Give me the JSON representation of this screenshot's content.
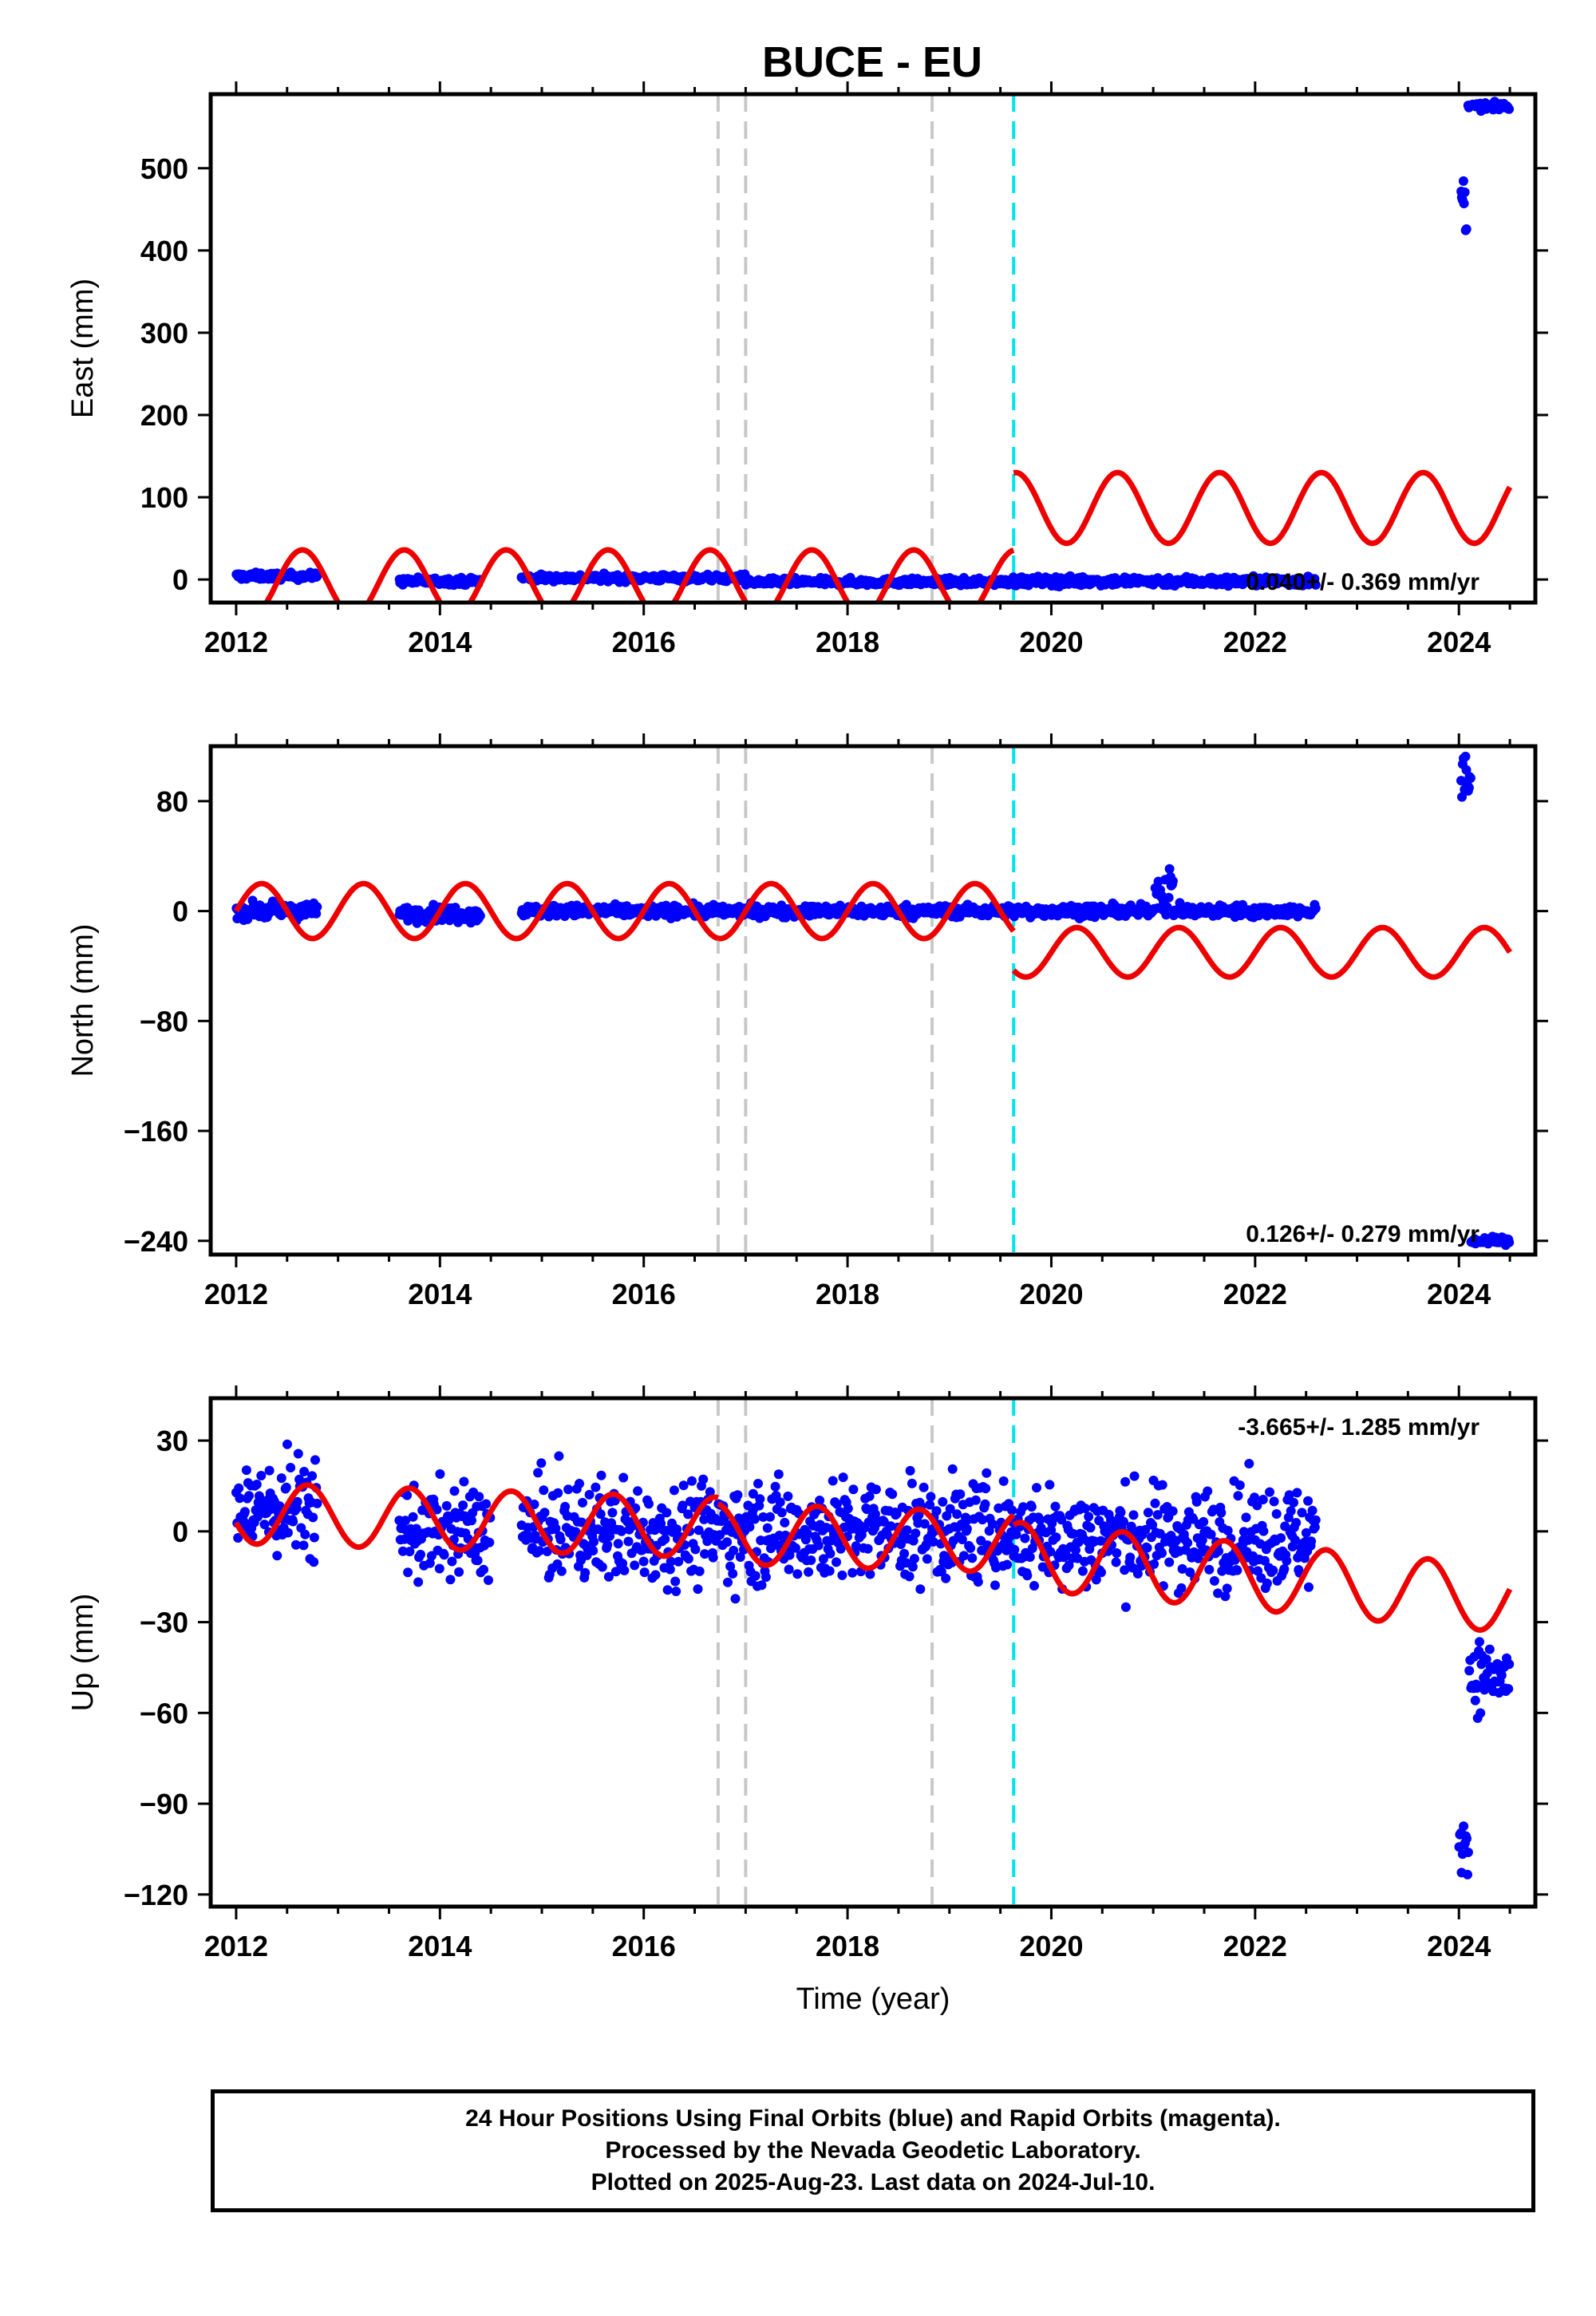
{
  "title": "BUCE - EU",
  "footer": {
    "line1": "24 Hour Positions Using Final Orbits (blue) and Rapid Orbits (magenta).",
    "line2": "Processed by the Nevada Geodetic Laboratory.",
    "line3": "Plotted on 2025-Aug-23. Last data on 2024-Jul-10."
  },
  "colors": {
    "data": "#0000ff",
    "model": "#ee0000",
    "step_marker": "#c8c8c8",
    "equipment_marker": "#00e5ee"
  },
  "chart_data": [
    {
      "type": "scatter",
      "panel": "East",
      "ylabel": "East (mm)",
      "xlabel": "",
      "xlim": [
        2011.75,
        2024.75
      ],
      "ylim": [
        -28,
        590
      ],
      "xticks": [
        2012,
        2014,
        2016,
        2018,
        2020,
        2022,
        2024
      ],
      "yticks": [
        0,
        100,
        200,
        300,
        400,
        500
      ],
      "rate_text": "0.040+/- 0.369 mm/yr",
      "markers": [
        {
          "x": 2016.73,
          "kind": "gray"
        },
        {
          "x": 2017.0,
          "kind": "gray"
        },
        {
          "x": 2018.83,
          "kind": "gray"
        },
        {
          "x": 2019.63,
          "kind": "cyan"
        }
      ],
      "model": {
        "segments": [
          {
            "x0": 2012.0,
            "x1": 2016.73,
            "offset": -4,
            "trend": 0,
            "amp": 40,
            "phase": 0.4
          },
          {
            "x0": 2016.73,
            "x1": 2019.63,
            "offset": -4,
            "trend": 0,
            "amp": 40,
            "phase": 0.4
          },
          {
            "x0": 2019.63,
            "x1": 2024.5,
            "offset": 87,
            "trend": 0,
            "amp": 43,
            "phase": 0.4
          }
        ]
      },
      "data": {
        "clusters": [
          {
            "x0": 2012.0,
            "x1": 2012.8,
            "y": 4,
            "noise": 3
          },
          {
            "x0": 2013.6,
            "x1": 2014.4,
            "y": -2,
            "noise": 3
          },
          {
            "x0": 2014.8,
            "x1": 2017.0,
            "y": 2,
            "noise": 3
          },
          {
            "x0": 2017.0,
            "x1": 2019.6,
            "y": -3,
            "noise": 3
          },
          {
            "x0": 2019.6,
            "x1": 2022.6,
            "y": -2,
            "noise": 4
          },
          {
            "x0": 2024.02,
            "x1": 2024.08,
            "y": 460,
            "noise": 25
          },
          {
            "x0": 2024.09,
            "x1": 2024.5,
            "y": 575,
            "noise": 3
          }
        ]
      }
    },
    {
      "type": "scatter",
      "panel": "North",
      "ylabel": "North (mm)",
      "xlabel": "",
      "xlim": [
        2011.75,
        2024.75
      ],
      "ylim": [
        -250,
        120
      ],
      "xticks": [
        2012,
        2014,
        2016,
        2018,
        2020,
        2022,
        2024
      ],
      "yticks": [
        80,
        0,
        -80,
        -160,
        -240
      ],
      "ytick_labels": [
        "80",
        "0",
        "−80",
        "−160",
        "−240"
      ],
      "rate_text": "0.126+/- 0.279 mm/yr",
      "markers": [
        {
          "x": 2016.73,
          "kind": "gray"
        },
        {
          "x": 2017.0,
          "kind": "gray"
        },
        {
          "x": 2018.83,
          "kind": "gray"
        },
        {
          "x": 2019.63,
          "kind": "cyan"
        }
      ],
      "model": {
        "segments": [
          {
            "x0": 2012.0,
            "x1": 2016.73,
            "offset": 0,
            "trend": 0,
            "amp": 20,
            "phase": 0.0
          },
          {
            "x0": 2016.73,
            "x1": 2019.63,
            "offset": 0,
            "trend": 0,
            "amp": 20,
            "phase": 0.0
          },
          {
            "x0": 2019.63,
            "x1": 2024.5,
            "offset": -30,
            "trend": 0,
            "amp": 18,
            "phase": 0.0
          }
        ]
      },
      "data": {
        "clusters": [
          {
            "x0": 2012.0,
            "x1": 2012.8,
            "y": 0,
            "noise": 4
          },
          {
            "x0": 2013.6,
            "x1": 2014.4,
            "y": -2,
            "noise": 4
          },
          {
            "x0": 2014.8,
            "x1": 2021.0,
            "y": 0,
            "noise": 3
          },
          {
            "x0": 2021.0,
            "x1": 2021.2,
            "y": 15,
            "noise": 12
          },
          {
            "x0": 2021.2,
            "x1": 2022.6,
            "y": 0,
            "noise": 3
          },
          {
            "x0": 2024.02,
            "x1": 2024.12,
            "y": 95,
            "noise": 12
          },
          {
            "x0": 2024.12,
            "x1": 2024.5,
            "y": -240,
            "noise": 2
          }
        ]
      }
    },
    {
      "type": "scatter",
      "panel": "Up",
      "ylabel": "Up (mm)",
      "xlabel": "Time (year)",
      "xlim": [
        2011.75,
        2024.75
      ],
      "ylim": [
        -124,
        44
      ],
      "xticks": [
        2012,
        2014,
        2016,
        2018,
        2020,
        2022,
        2024
      ],
      "yticks": [
        30,
        0,
        -30,
        -60,
        -90,
        -120
      ],
      "ytick_labels": [
        "30",
        "0",
        "−30",
        "−60",
        "−90",
        "−120"
      ],
      "rate_text": "-3.665+/- 1.285 mm/yr",
      "markers": [
        {
          "x": 2016.73,
          "kind": "gray"
        },
        {
          "x": 2017.0,
          "kind": "gray"
        },
        {
          "x": 2018.83,
          "kind": "gray"
        },
        {
          "x": 2019.63,
          "kind": "cyan"
        }
      ],
      "model": {
        "segments": [
          {
            "x0": 2012.0,
            "x1": 2016.73,
            "offset": 2,
            "trend": -1.0,
            "amp": 10,
            "phase": 0.45
          },
          {
            "x0": 2016.73,
            "x1": 2019.63,
            "offset": 0,
            "trend": -1.0,
            "amp": 10,
            "phase": 0.45
          },
          {
            "x0": 2019.63,
            "x1": 2024.5,
            "offset": 3,
            "trend": -3.0,
            "amp": 11,
            "phase": 0.45
          }
        ]
      },
      "data": {
        "clusters": [
          {
            "x0": 2012.0,
            "x1": 2012.8,
            "y": 8,
            "noise": 12
          },
          {
            "x0": 2013.6,
            "x1": 2014.5,
            "y": 0,
            "noise": 11
          },
          {
            "x0": 2014.8,
            "x1": 2016.73,
            "y": 0,
            "noise": 12
          },
          {
            "x0": 2016.73,
            "x1": 2019.63,
            "y": 0,
            "noise": 12
          },
          {
            "x0": 2019.63,
            "x1": 2022.6,
            "y": -2,
            "noise": 12
          },
          {
            "x0": 2024.0,
            "x1": 2024.1,
            "y": -100,
            "noise": 12
          },
          {
            "x0": 2024.1,
            "x1": 2024.5,
            "y": -48,
            "noise": 8
          }
        ]
      }
    }
  ]
}
